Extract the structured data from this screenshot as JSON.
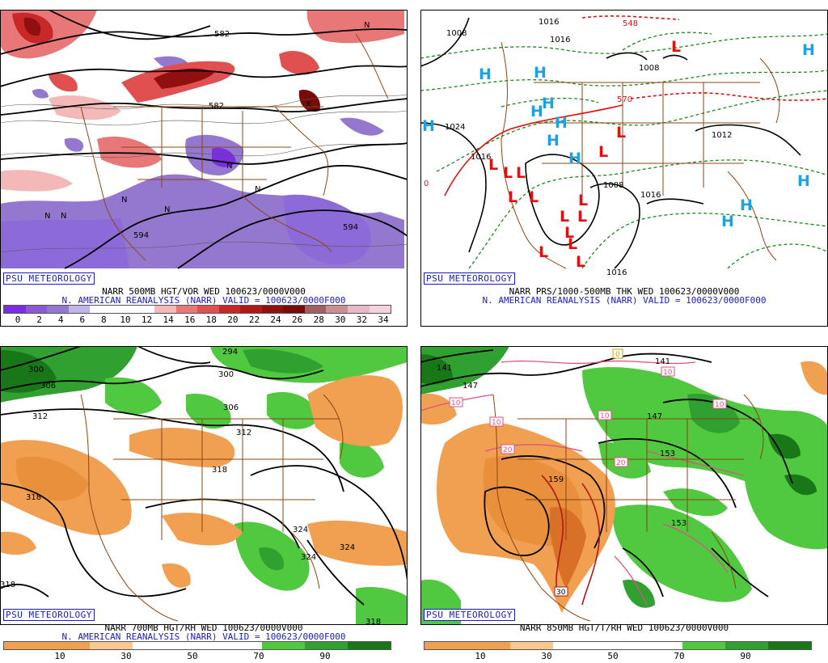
{
  "panels": [
    {
      "credit": "PSU METEOROLOGY",
      "caption1": "NARR 500MB HGT/VOR WED 100623/0000V000",
      "caption2": "N. AMERICAN REANALYSIS (NARR) VALID = 100623/0000F000",
      "colorbar": {
        "colors": [
          "#7b2ee0",
          "#8c58d8",
          "#9478d0",
          "#c0b4e8",
          "#ffffff",
          "#ffffff",
          "#ffffff",
          "#f4b8b8",
          "#e87878",
          "#e05050",
          "#c82828",
          "#b01818",
          "#901010",
          "#780a0a",
          "#a06060",
          "#c89090",
          "#e8b8c8",
          "#f4d4dc"
        ],
        "ticks": [
          "0",
          "2",
          "4",
          "6",
          "8",
          "10",
          "12",
          "14",
          "16",
          "18",
          "20",
          "22",
          "24",
          "26",
          "28",
          "30",
          "32",
          "34"
        ]
      },
      "labels": [
        "582",
        "582",
        "594",
        "594",
        "N",
        "N",
        "N",
        "N",
        "N",
        "N",
        "N",
        "X"
      ]
    },
    {
      "credit": "PSU METEOROLOGY",
      "caption1": "NARR PRS/1000-500MB THK WED 100623/0000V000",
      "caption2": "N. AMERICAN REANALYSIS (NARR) VALID = 100623/0000F000",
      "labels": [
        "1008",
        "1016",
        "1016",
        "1008",
        "1024",
        "1016",
        "1008",
        "1016",
        "1016",
        "1012",
        "548",
        "570",
        "0"
      ],
      "highs": [
        "H",
        "H",
        "H",
        "H",
        "H",
        "H",
        "H",
        "H",
        "H",
        "H",
        "H",
        "H"
      ],
      "lows": [
        "L",
        "L",
        "L",
        "L",
        "L",
        "L",
        "L",
        "L",
        "L",
        "L",
        "L",
        "L",
        "L",
        "L",
        "L"
      ]
    },
    {
      "credit": "PSU METEOROLOGY",
      "caption1": "NARR 700MB HGT/RH WED 100623/0000V000",
      "caption2": "N. AMERICAN REANALYSIS (NARR) VALID = 100623/0000F000",
      "colorbar": {
        "colors": [
          "#f0a050",
          "#f0a050",
          "#f8c890",
          "#ffffff",
          "#ffffff",
          "#ffffff",
          "#50c840",
          "#30a030",
          "#187818"
        ],
        "ticks": [
          "10",
          "30",
          "50",
          "70",
          "90"
        ]
      },
      "labels": [
        "294",
        "300",
        "300",
        "306",
        "306",
        "312",
        "312",
        "318",
        "318",
        "318",
        "324",
        "324",
        "324",
        "318"
      ]
    },
    {
      "credit": "PSU METEOROLOGY",
      "caption1": "NARR 850MB HGT/T/RH WED 100623/0000V000",
      "colorbar": {
        "colors": [
          "#f0a050",
          "#f0a050",
          "#f8c890",
          "#ffffff",
          "#ffffff",
          "#ffffff",
          "#50c840",
          "#30a030",
          "#187818"
        ],
        "ticks": [
          "10",
          "30",
          "50",
          "70",
          "90"
        ]
      },
      "labels": [
        "141",
        "147",
        "147",
        "141",
        "153",
        "153",
        "159",
        "0",
        "10",
        "10",
        "10",
        "10",
        "10",
        "20",
        "20",
        "30"
      ]
    }
  ]
}
